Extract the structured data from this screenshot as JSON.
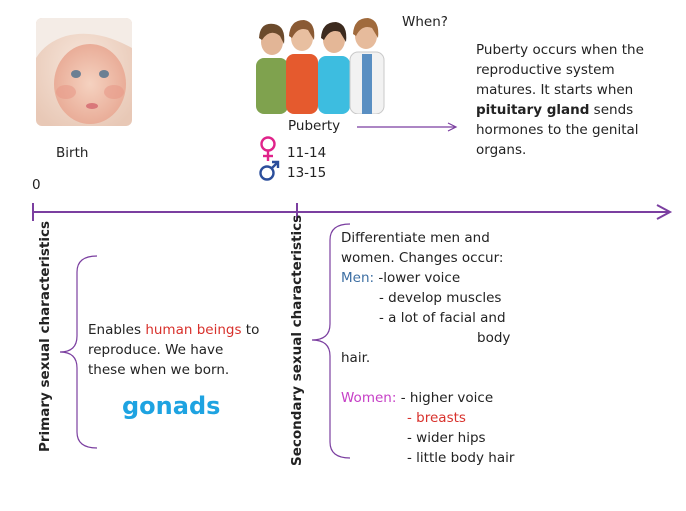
{
  "timeline": {
    "zero_label": "0",
    "birth_label": "Birth",
    "puberty_label": "Puberty",
    "female_age": "11-14",
    "male_age": "13-15",
    "colors": {
      "axis": "#7b3fa0",
      "female": "#e0238a",
      "male": "#2b4e9b"
    }
  },
  "when": {
    "question": "When?",
    "lines": [
      "Puberty occurs when the",
      "reproductive  system",
      "matures. It starts when",
      "",
      "hormones to the genital",
      "organs."
    ],
    "bold_term": "pituitary gland",
    "bold_suffix": " sends"
  },
  "primary": {
    "vertical_label": "Primary sexual characteristics",
    "line1_prefix": "Enables ",
    "line1_highlight": "human beings",
    "line1_suffix": " to",
    "line2": "reproduce. We have",
    "line3": "these when we born.",
    "keyword": "gonads"
  },
  "secondary": {
    "vertical_label": "Secondary sexual characteristics",
    "intro1": "Differentiate men and",
    "intro2": "women. Changes occur:",
    "men_label": "Men:",
    "men_items": [
      "-lower voice",
      "- develop muscles",
      "- a lot of facial and"
    ],
    "men_wrap": "body",
    "men_wrap2": "hair.",
    "women_label": "Women:",
    "women_items": [
      "- higher voice",
      "- breasts",
      "- wider hips",
      "- little body hair"
    ],
    "colors": {
      "men": "#3d6fa3",
      "women": "#c63fc6",
      "highlight": "#d8312c"
    }
  }
}
